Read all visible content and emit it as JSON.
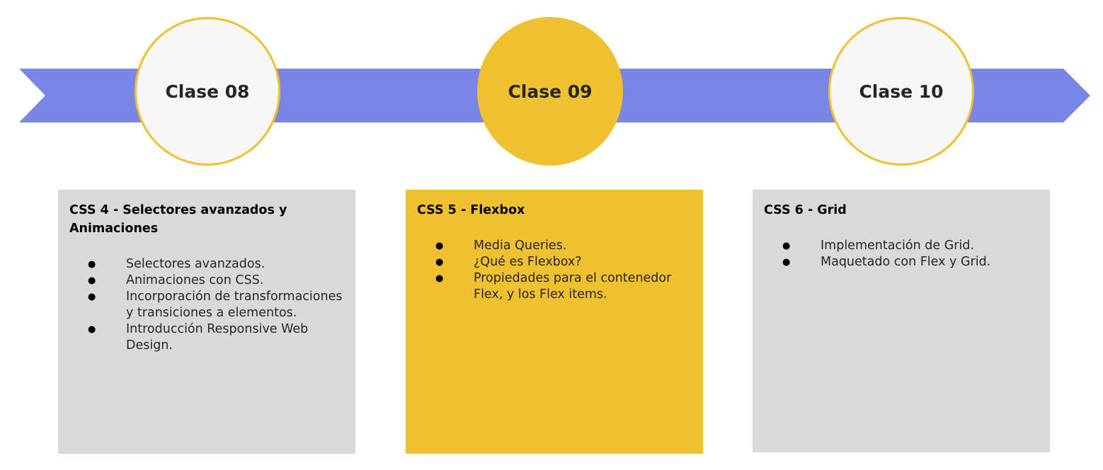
{
  "colors": {
    "arrow": "#7986e6",
    "highlight": "#efc02f",
    "card_gray": "#d9d9d9",
    "circle_fill": "#f7f7f7"
  },
  "classes": [
    {
      "label": "Clase 08",
      "active": false,
      "card": {
        "title": "CSS 4 - Selectores avanzados y Animaciones",
        "items": [
          "Selectores avanzados.",
          "Animaciones con CSS.",
          "Incorporación de transformaciones y transiciones a elementos.",
          "Introducción Responsive Web Design."
        ]
      }
    },
    {
      "label": "Clase 09",
      "active": true,
      "card": {
        "title": "CSS 5 - Flexbox",
        "items": [
          "Media Queries.",
          "¿Qué es Flexbox?",
          "Propiedades para el contenedor Flex, y los Flex items."
        ]
      }
    },
    {
      "label": "Clase 10",
      "active": false,
      "card": {
        "title": "CSS 6 - Grid",
        "items": [
          "Implementación de Grid.",
          "Maquetado con Flex y Grid."
        ]
      }
    }
  ]
}
